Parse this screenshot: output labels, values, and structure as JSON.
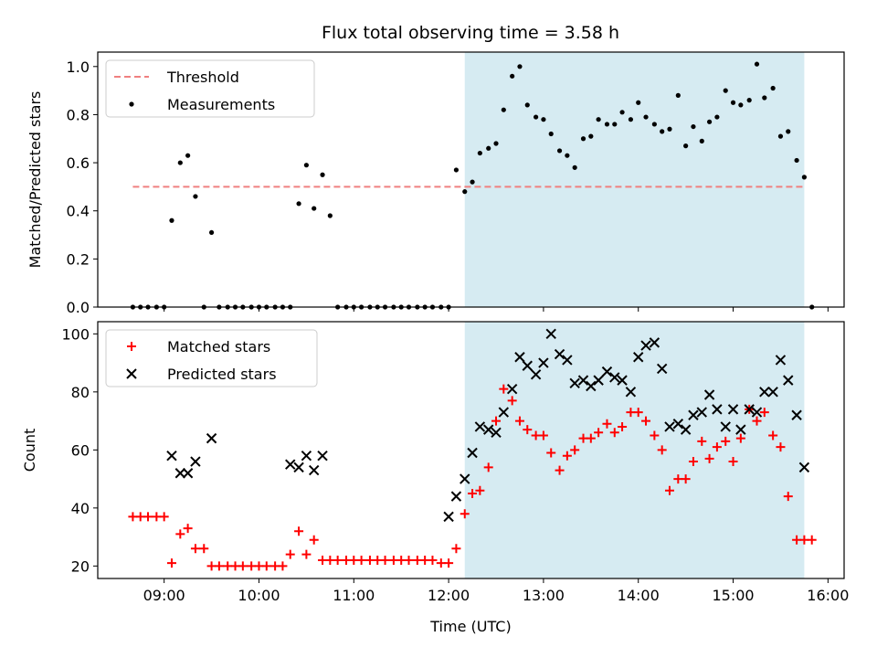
{
  "figure": {
    "title": "Flux total observing time = 3.58 h"
  },
  "chart_data": [
    {
      "type": "scatter",
      "panel": "top",
      "ylabel": "Matched/Predicted stars",
      "ylim": [
        0,
        1.06
      ],
      "xlim": [
        8.3,
        16.17
      ],
      "yticks": [
        0,
        0.2,
        0.4,
        0.6,
        0.8,
        1.0
      ],
      "yticklabels": [
        "0.0",
        "0.2",
        "0.4",
        "0.6",
        "0.8",
        "1.0"
      ],
      "shaded_range": {
        "x": [
          12.17,
          15.75
        ],
        "color": "#add8e6"
      },
      "legend": {
        "position": "top-left",
        "entries": [
          "Threshold",
          "Measurements"
        ]
      },
      "series": [
        {
          "name": "Threshold",
          "kind": "dashed-line",
          "color": "#f08080",
          "x": [
            8.67,
            15.75
          ],
          "y": [
            0.5,
            0.5
          ]
        },
        {
          "name": "Measurements",
          "kind": "dots",
          "color": "#000000",
          "x": [
            8.67,
            8.75,
            8.83,
            8.92,
            9.0,
            9.08,
            9.17,
            9.25,
            9.33,
            9.42,
            9.5,
            9.58,
            9.67,
            9.75,
            9.83,
            9.92,
            10.0,
            10.08,
            10.17,
            10.25,
            10.33,
            10.42,
            10.5,
            10.58,
            10.67,
            10.75,
            10.83,
            10.92,
            11.0,
            11.08,
            11.17,
            11.25,
            11.33,
            11.42,
            11.5,
            11.58,
            11.67,
            11.75,
            11.83,
            11.92,
            12.0,
            12.08,
            12.17,
            12.25,
            12.33,
            12.42,
            12.5,
            12.58,
            12.67,
            12.75,
            12.83,
            12.92,
            13.0,
            13.08,
            13.17,
            13.25,
            13.33,
            13.42,
            13.5,
            13.58,
            13.67,
            13.75,
            13.83,
            13.92,
            14.0,
            14.08,
            14.17,
            14.25,
            14.33,
            14.42,
            14.5,
            14.58,
            14.67,
            14.75,
            14.83,
            14.92,
            15.0,
            15.08,
            15.17,
            15.25,
            15.33,
            15.42,
            15.5,
            15.58,
            15.67,
            15.75,
            15.83
          ],
          "y": [
            0,
            0,
            0,
            0,
            0,
            0.36,
            0.6,
            0.63,
            0.46,
            0,
            0.31,
            0,
            0,
            0,
            0,
            0,
            0,
            0,
            0,
            0,
            0,
            0.43,
            0.59,
            0.41,
            0.55,
            0.38,
            0,
            0,
            0,
            0,
            0,
            0,
            0,
            0,
            0,
            0,
            0,
            0,
            0,
            0,
            0,
            0.57,
            0.48,
            0.52,
            0.64,
            0.66,
            0.68,
            0.82,
            0.96,
            1.0,
            0.84,
            0.79,
            0.78,
            0.72,
            0.65,
            0.63,
            0.58,
            0.7,
            0.71,
            0.78,
            0.76,
            0.76,
            0.81,
            0.78,
            0.85,
            0.79,
            0.76,
            0.73,
            0.74,
            0.88,
            0.67,
            0.75,
            0.69,
            0.77,
            0.79,
            0.9,
            0.85,
            0.84,
            0.86,
            1.01,
            0.87,
            0.91,
            0.71,
            0.73,
            0.61,
            0.54,
            0
          ]
        }
      ]
    },
    {
      "type": "scatter",
      "panel": "bottom",
      "xlabel": "Time (UTC)",
      "ylabel": "Count",
      "ylim": [
        15.7,
        104.2
      ],
      "xlim": [
        8.3,
        16.17
      ],
      "xticks": [
        9,
        10,
        11,
        12,
        13,
        14,
        15,
        16
      ],
      "xticklabels": [
        "09:00",
        "10:00",
        "11:00",
        "12:00",
        "13:00",
        "14:00",
        "15:00",
        "16:00"
      ],
      "yticks": [
        20,
        40,
        60,
        80,
        100
      ],
      "yticklabels": [
        "20",
        "40",
        "60",
        "80",
        "100"
      ],
      "shaded_range": {
        "x": [
          12.17,
          15.75
        ],
        "color": "#add8e6"
      },
      "legend": {
        "position": "top-left",
        "entries": [
          "Matched stars",
          "Predicted stars"
        ]
      },
      "series": [
        {
          "name": "Matched stars",
          "marker": "plus",
          "color": "#ff0000",
          "x": [
            8.67,
            8.75,
            8.83,
            8.92,
            9.0,
            9.08,
            9.17,
            9.25,
            9.33,
            9.42,
            9.5,
            9.58,
            9.67,
            9.75,
            9.83,
            9.92,
            10.0,
            10.08,
            10.17,
            10.25,
            10.33,
            10.42,
            10.5,
            10.58,
            10.67,
            10.75,
            10.83,
            10.92,
            11.0,
            11.08,
            11.17,
            11.25,
            11.33,
            11.42,
            11.5,
            11.58,
            11.67,
            11.75,
            11.83,
            11.92,
            12.0,
            12.08,
            12.17,
            12.25,
            12.33,
            12.42,
            12.5,
            12.58,
            12.67,
            12.75,
            12.83,
            12.92,
            13.0,
            13.08,
            13.17,
            13.25,
            13.33,
            13.42,
            13.5,
            13.58,
            13.67,
            13.75,
            13.83,
            13.92,
            14.0,
            14.08,
            14.17,
            14.25,
            14.33,
            14.42,
            14.5,
            14.58,
            14.67,
            14.75,
            14.83,
            14.92,
            15.0,
            15.08,
            15.17,
            15.25,
            15.33,
            15.42,
            15.5,
            15.58,
            15.67,
            15.75,
            15.83
          ],
          "y": [
            37,
            37,
            37,
            37,
            37,
            21,
            31,
            33,
            26,
            26,
            20,
            20,
            20,
            20,
            20,
            20,
            20,
            20,
            20,
            20,
            24,
            32,
            24,
            29,
            22,
            22,
            22,
            22,
            22,
            22,
            22,
            22,
            22,
            22,
            22,
            22,
            22,
            22,
            22,
            21,
            21,
            26,
            38,
            45,
            46,
            54,
            70,
            81,
            77,
            70,
            67,
            65,
            65,
            59,
            53,
            58,
            60,
            64,
            64,
            66,
            69,
            66,
            68,
            73,
            73,
            70,
            65,
            60,
            46,
            50,
            50,
            56,
            63,
            57,
            61,
            63,
            56,
            64,
            74,
            70,
            73,
            65,
            61,
            44,
            29,
            29,
            29
          ],
          "note": ""
        },
        {
          "name": "Predicted stars",
          "marker": "x",
          "color": "#000000",
          "x": [
            9.08,
            9.17,
            9.25,
            9.33,
            9.5,
            10.33,
            10.42,
            10.5,
            10.58,
            10.67,
            12.0,
            12.08,
            12.17,
            12.25,
            12.33,
            12.42,
            12.5,
            12.58,
            12.67,
            12.75,
            12.83,
            12.92,
            13.0,
            13.08,
            13.17,
            13.25,
            13.33,
            13.42,
            13.5,
            13.58,
            13.67,
            13.75,
            13.83,
            13.92,
            14.0,
            14.08,
            14.17,
            14.25,
            14.33,
            14.42,
            14.5,
            14.58,
            14.67,
            14.75,
            14.83,
            14.92,
            15.0,
            15.08,
            15.17,
            15.25,
            15.33,
            15.42,
            15.5,
            15.58,
            15.67,
            15.75
          ],
          "y": [
            58,
            52,
            52,
            56,
            64,
            55,
            54,
            58,
            53,
            58,
            37,
            44,
            50,
            59,
            68,
            67,
            66,
            73,
            81,
            92,
            89,
            86,
            90,
            100,
            93,
            91,
            83,
            84,
            82,
            84,
            87,
            85,
            84,
            80,
            92,
            96,
            97,
            88,
            68,
            69,
            67,
            72,
            73,
            79,
            74,
            68,
            74,
            67,
            74,
            73,
            80,
            80,
            91,
            84,
            72,
            54
          ]
        }
      ]
    }
  ]
}
